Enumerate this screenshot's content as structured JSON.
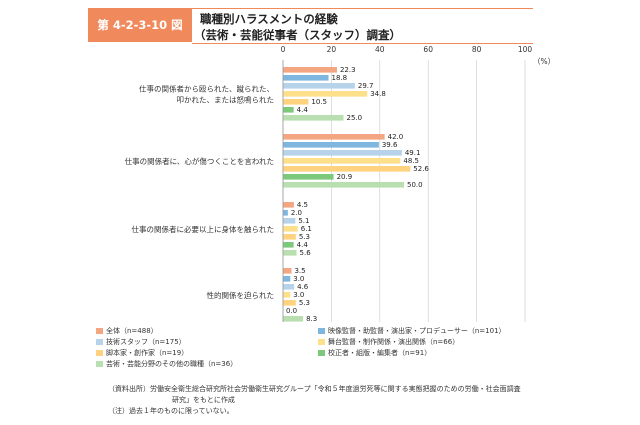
{
  "figure": {
    "label": "第 4-2-3-10 図",
    "title_line1": "職種別ハラスメントの経験",
    "title_line2": "（芸術・芸能従事者（スタッフ）調査）"
  },
  "chart_data": {
    "type": "bar",
    "orientation": "horizontal",
    "unit": "（%）",
    "xlim": [
      0,
      100
    ],
    "xticks": [
      "0",
      "20",
      "40",
      "60",
      "80",
      "100"
    ],
    "grid": true,
    "legend_position": "bottom",
    "categories": [
      [
        "仕事の関係者から殴られた、蹴られた、",
        "叩かれた、または怒鳴られた"
      ],
      [
        "仕事の関係者に、心が傷つくことを言われた"
      ],
      [
        "仕事の関係者に必要以上に身体を触られた"
      ],
      [
        "性的関係を迫られた"
      ]
    ],
    "series": [
      {
        "name": "全体（n=488）",
        "color": "#f4a582",
        "values": [
          22.3,
          42.0,
          4.5,
          3.5
        ]
      },
      {
        "name": "映像監督・助監督・演出家・プロデューサー（n=101）",
        "color": "#7eb6df",
        "values": [
          18.8,
          39.6,
          2.0,
          3.0
        ]
      },
      {
        "name": "技術スタッフ（n=175）",
        "color": "#b7d3ea",
        "values": [
          29.7,
          49.1,
          5.1,
          4.6
        ]
      },
      {
        "name": "舞台監督・制作関係・演出関係（n=66）",
        "color": "#fde089",
        "values": [
          34.8,
          48.5,
          6.1,
          3.0
        ]
      },
      {
        "name": "脚本家・創作家（n=19）",
        "color": "#ffd27f",
        "values": [
          10.5,
          52.6,
          5.3,
          5.3
        ]
      },
      {
        "name": "校正者・組版・編集者（n=91）",
        "color": "#7cc97c",
        "values": [
          4.4,
          20.9,
          4.4,
          0.0
        ]
      },
      {
        "name": "芸術・芸能分野のその他の職種（n=36）",
        "color": "#b9dfb0",
        "values": [
          25.0,
          50.0,
          5.6,
          8.3
        ]
      }
    ]
  },
  "notes": {
    "source_line1": "（資料出所）労働安全衛生総合研究所社会労働衛生研究グループ「令和５年度過労死等に関する実態把握のための労働・社会面調査",
    "source_line2": "研究」をもとに作成",
    "note": "（注）過去１年のものに限っていない。"
  }
}
